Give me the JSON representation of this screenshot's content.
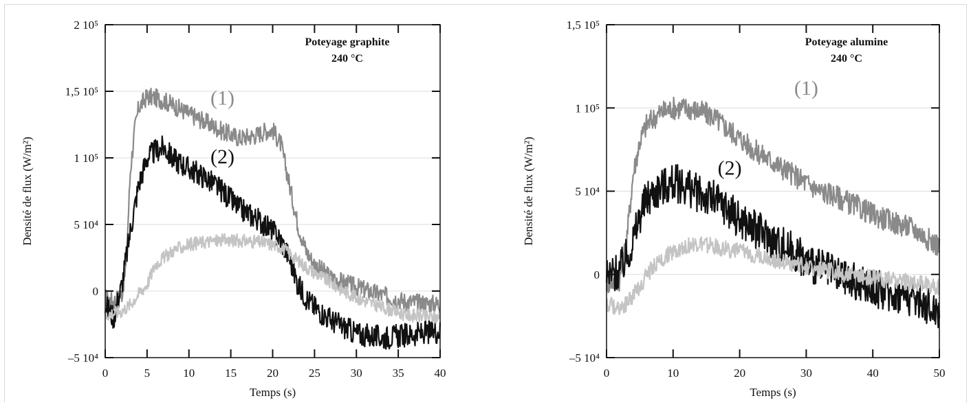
{
  "chart_data": [
    {
      "type": "line",
      "xlabel": "Temps (s)",
      "ylabel": "Densité de flux (W/m²)",
      "xlim": [
        0,
        40
      ],
      "ylim": [
        -50000,
        200000
      ],
      "x_ticks": [
        0,
        5,
        10,
        15,
        20,
        25,
        30,
        35,
        40
      ],
      "x_tick_labels": [
        "0",
        "5",
        "10",
        "15",
        "20",
        "25",
        "30",
        "35",
        "40"
      ],
      "y_ticks": [
        -50000,
        0,
        50000,
        100000,
        150000,
        200000
      ],
      "y_tick_labels": [
        "–5 10⁴",
        "0",
        "5 10⁴",
        "1 10⁵",
        "1,5 10⁵",
        "2 10⁵"
      ],
      "annotation": [
        "Poteyage graphite",
        "240 °C"
      ],
      "grid": true,
      "series": [
        {
          "label": "(1)",
          "color": "#8a8a8a",
          "points": [
            [
              0,
              -5000
            ],
            [
              1,
              -8000
            ],
            [
              2,
              -2000
            ],
            [
              2.5,
              20000
            ],
            [
              3,
              90000
            ],
            [
              3.5,
              120000
            ],
            [
              4,
              138000
            ],
            [
              5,
              146000
            ],
            [
              6,
              145000
            ],
            [
              7,
              143000
            ],
            [
              8,
              140000
            ],
            [
              10,
              133000
            ],
            [
              12,
              127000
            ],
            [
              14,
              120000
            ],
            [
              16,
              115000
            ],
            [
              18,
              117000
            ],
            [
              19,
              120000
            ],
            [
              20,
              121000
            ],
            [
              21,
              110000
            ],
            [
              22,
              80000
            ],
            [
              23,
              50000
            ],
            [
              24,
              30000
            ],
            [
              25,
              20000
            ],
            [
              27,
              10000
            ],
            [
              30,
              3000
            ],
            [
              33,
              -3000
            ],
            [
              36,
              -8000
            ],
            [
              40,
              -10000
            ]
          ]
        },
        {
          "label": "(2)",
          "color": "#111111",
          "points": [
            [
              0,
              -10000
            ],
            [
              1,
              -20000
            ],
            [
              2,
              5000
            ],
            [
              3,
              45000
            ],
            [
              4,
              80000
            ],
            [
              5,
              100000
            ],
            [
              6,
              105000
            ],
            [
              7,
              108000
            ],
            [
              8,
              100000
            ],
            [
              10,
              92000
            ],
            [
              12,
              85000
            ],
            [
              14,
              75000
            ],
            [
              16,
              62000
            ],
            [
              18,
              55000
            ],
            [
              20,
              45000
            ],
            [
              21,
              38000
            ],
            [
              22,
              25000
            ],
            [
              23,
              5000
            ],
            [
              24,
              -5000
            ],
            [
              25,
              -12000
            ],
            [
              27,
              -22000
            ],
            [
              30,
              -32000
            ],
            [
              33,
              -35000
            ],
            [
              36,
              -33000
            ],
            [
              40,
              -30000
            ]
          ]
        },
        {
          "label": "",
          "color": "#c4c4c4",
          "points": [
            [
              0,
              -18000
            ],
            [
              2,
              -15000
            ],
            [
              3,
              -10000
            ],
            [
              4,
              -2000
            ],
            [
              5,
              5000
            ],
            [
              6,
              20000
            ],
            [
              8,
              30000
            ],
            [
              10,
              35000
            ],
            [
              12,
              37000
            ],
            [
              14,
              38000
            ],
            [
              16,
              38000
            ],
            [
              18,
              37000
            ],
            [
              20,
              35000
            ],
            [
              21,
              33000
            ],
            [
              22,
              28000
            ],
            [
              24,
              18000
            ],
            [
              26,
              10000
            ],
            [
              28,
              2000
            ],
            [
              30,
              -5000
            ],
            [
              33,
              -12000
            ],
            [
              36,
              -18000
            ],
            [
              40,
              -20000
            ]
          ]
        }
      ]
    },
    {
      "type": "line",
      "xlabel": "Temps (s)",
      "ylabel": "Densité de flux (W/m²)",
      "xlim": [
        0,
        50
      ],
      "ylim": [
        -50000,
        150000
      ],
      "x_ticks": [
        0,
        10,
        20,
        30,
        40,
        50
      ],
      "x_tick_labels": [
        "0",
        "10",
        "20",
        "30",
        "40",
        "50"
      ],
      "y_ticks": [
        -50000,
        0,
        50000,
        100000,
        150000
      ],
      "y_tick_labels": [
        "–5 10⁴",
        "0",
        "5 10⁴",
        "1 10⁵",
        "1,5 10⁵"
      ],
      "annotation": [
        "Poteyage alumine",
        "240 °C"
      ],
      "grid": true,
      "series": [
        {
          "label": "(1)",
          "color": "#8a8a8a",
          "points": [
            [
              0,
              -5000
            ],
            [
              2,
              -3000
            ],
            [
              3,
              20000
            ],
            [
              4,
              60000
            ],
            [
              5,
              80000
            ],
            [
              6,
              90000
            ],
            [
              8,
              97000
            ],
            [
              10,
              100000
            ],
            [
              12,
              100000
            ],
            [
              14,
              98000
            ],
            [
              16,
              95000
            ],
            [
              18,
              88000
            ],
            [
              20,
              82000
            ],
            [
              22,
              75000
            ],
            [
              24,
              70000
            ],
            [
              26,
              65000
            ],
            [
              28,
              60000
            ],
            [
              30,
              55000
            ],
            [
              32,
              50000
            ],
            [
              34,
              48000
            ],
            [
              36,
              44000
            ],
            [
              38,
              40000
            ],
            [
              40,
              36000
            ],
            [
              42,
              33000
            ],
            [
              44,
              30000
            ],
            [
              46,
              28000
            ],
            [
              48,
              22000
            ],
            [
              50,
              17000
            ]
          ]
        },
        {
          "label": "(2)",
          "color": "#111111",
          "points": [
            [
              0,
              -2000
            ],
            [
              2,
              2000
            ],
            [
              3,
              10000
            ],
            [
              4,
              20000
            ],
            [
              5,
              35000
            ],
            [
              6,
              45000
            ],
            [
              8,
              52000
            ],
            [
              10,
              55000
            ],
            [
              12,
              53000
            ],
            [
              14,
              48000
            ],
            [
              16,
              45000
            ],
            [
              18,
              40000
            ],
            [
              20,
              33000
            ],
            [
              22,
              28000
            ],
            [
              24,
              23000
            ],
            [
              26,
              18000
            ],
            [
              28,
              14000
            ],
            [
              30,
              8000
            ],
            [
              32,
              4000
            ],
            [
              34,
              0
            ],
            [
              36,
              -3000
            ],
            [
              38,
              -6000
            ],
            [
              40,
              -8000
            ],
            [
              42,
              -10000
            ],
            [
              44,
              -12000
            ],
            [
              46,
              -14000
            ],
            [
              48,
              -18000
            ],
            [
              50,
              -22000
            ]
          ]
        },
        {
          "label": "",
          "color": "#c4c4c4",
          "points": [
            [
              0,
              -18000
            ],
            [
              2,
              -20000
            ],
            [
              3,
              -18000
            ],
            [
              4,
              -12000
            ],
            [
              5,
              -8000
            ],
            [
              6,
              0
            ],
            [
              8,
              8000
            ],
            [
              10,
              14000
            ],
            [
              12,
              17000
            ],
            [
              14,
              18000
            ],
            [
              16,
              17000
            ],
            [
              18,
              15000
            ],
            [
              20,
              14000
            ],
            [
              22,
              12000
            ],
            [
              24,
              10000
            ],
            [
              26,
              8000
            ],
            [
              28,
              6000
            ],
            [
              30,
              5000
            ],
            [
              32,
              3000
            ],
            [
              34,
              2000
            ],
            [
              36,
              0
            ],
            [
              38,
              -1000
            ],
            [
              40,
              -2000
            ],
            [
              42,
              -3000
            ],
            [
              44,
              -4000
            ],
            [
              46,
              -5000
            ],
            [
              48,
              -6000
            ],
            [
              50,
              -8000
            ]
          ]
        }
      ]
    }
  ]
}
